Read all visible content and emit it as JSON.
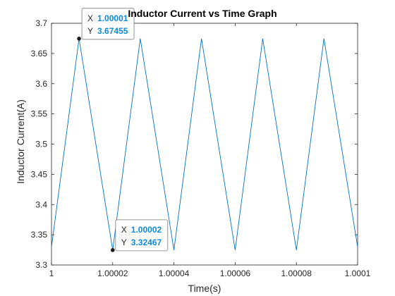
{
  "chart_data": {
    "type": "line",
    "title": "Inductor Current vs Time Graph",
    "xlabel": "Time(s)",
    "ylabel": "Inductor Current(A)",
    "xlim": [
      1.0,
      1.0001
    ],
    "ylim": [
      3.3,
      3.7
    ],
    "x_ticks": [
      1.0,
      1.00002,
      1.00004,
      1.00006,
      1.00008,
      1.0001
    ],
    "x_tick_labels": [
      "1",
      "1.00002",
      "1.00004",
      "1.00006",
      "1.00008",
      "1.0001"
    ],
    "y_ticks": [
      3.3,
      3.35,
      3.4,
      3.45,
      3.5,
      3.55,
      3.6,
      3.65,
      3.7
    ],
    "y_tick_labels": [
      "3.3",
      "3.35",
      "3.4",
      "3.45",
      "3.5",
      "3.55",
      "3.6",
      "3.65",
      "3.7"
    ],
    "grid": false,
    "series": [
      {
        "color": "#0072bd",
        "x": [
          1.0,
          1.000009,
          1.00002,
          1.000029,
          1.00004,
          1.000049,
          1.00006,
          1.000069,
          1.00008,
          1.000089,
          1.0001
        ],
        "y": [
          3.33,
          3.67455,
          3.32467,
          3.67455,
          3.32467,
          3.67455,
          3.32467,
          3.67455,
          3.32467,
          3.67455,
          3.33
        ]
      }
    ],
    "datatips": [
      {
        "x": 1.000009,
        "y": 3.67455,
        "x_label": "X",
        "y_label": "Y",
        "x_text": "1.00001",
        "y_text": "3.67455"
      },
      {
        "x": 1.00002,
        "y": 3.32467,
        "x_label": "X",
        "y_label": "Y",
        "x_text": "1.00002",
        "y_text": "3.32467"
      }
    ]
  },
  "colors": {
    "line": "#0072bd",
    "axis": "#262626",
    "datatip_value": "#0b8ad8"
  }
}
